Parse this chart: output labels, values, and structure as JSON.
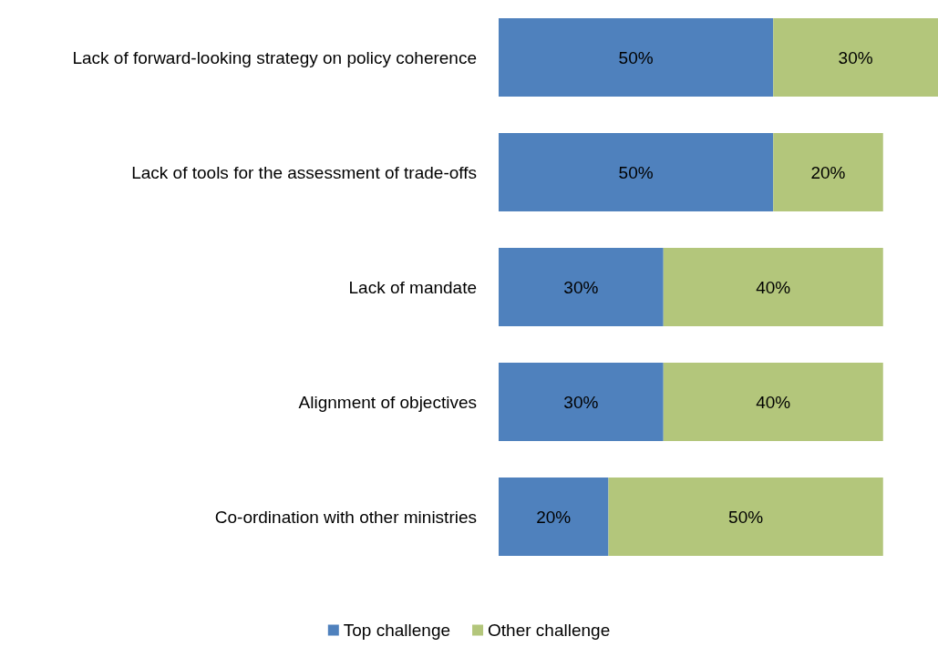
{
  "chart_data": {
    "type": "bar",
    "orientation": "horizontal",
    "stacked": true,
    "categories": [
      "Lack of forward-looking strategy on policy coherence",
      "Lack of tools for the assessment of trade-offs",
      "Lack of mandate",
      "Alignment of objectives",
      "Co-ordination with other ministries"
    ],
    "series": [
      {
        "name": "Top challenge",
        "color": "#4f81bd",
        "values": [
          50,
          50,
          30,
          30,
          20
        ],
        "value_labels": [
          "50%",
          "50%",
          "30%",
          "30%",
          "20%"
        ]
      },
      {
        "name": "Other challenge",
        "color": "#b3c67b",
        "values": [
          30,
          20,
          40,
          40,
          50
        ],
        "value_labels": [
          "30%",
          "20%",
          "40%",
          "40%",
          "50%"
        ]
      }
    ],
    "xlim": [
      0,
      80
    ],
    "tick_labels": "y",
    "legend": "bottom"
  }
}
